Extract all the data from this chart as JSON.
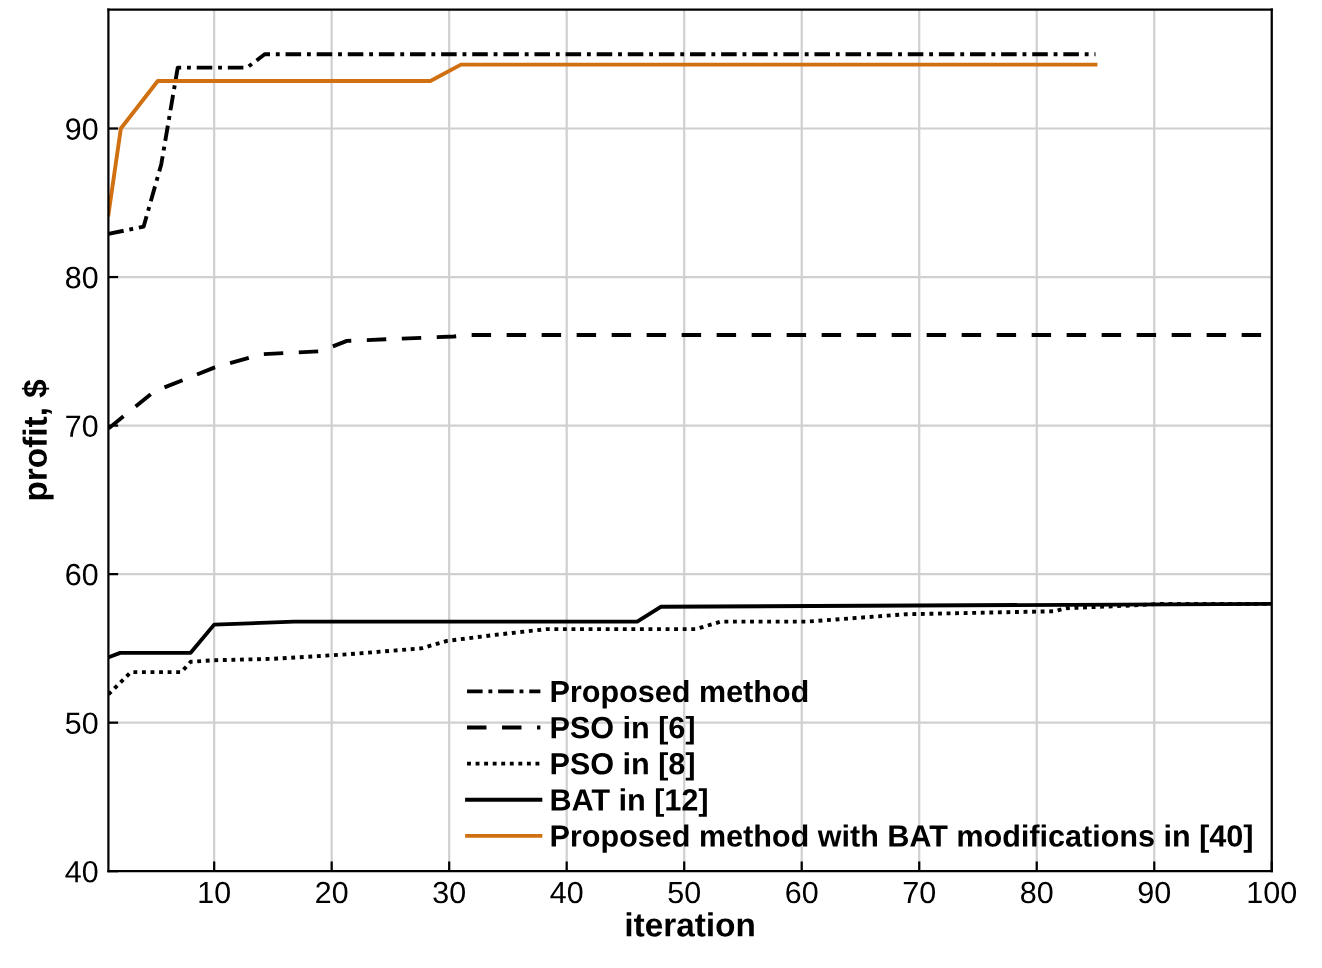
{
  "chart_data": {
    "type": "line",
    "xlabel": "iteration",
    "ylabel": "profit, $",
    "xlim": [
      1,
      100
    ],
    "ylim": [
      40,
      98
    ],
    "xticks": [
      10,
      20,
      30,
      40,
      50,
      60,
      70,
      80,
      90,
      100
    ],
    "yticks": [
      40,
      50,
      60,
      70,
      80,
      90
    ],
    "grid": true,
    "legend": "bottom right",
    "marker": "none",
    "series": [
      {
        "name": "Proposed method",
        "color": "#000000",
        "line_style": "dashdot",
        "x": [
          1,
          4,
          5.5,
          6.9,
          12.8,
          14.3,
          85
        ],
        "values": [
          82.9,
          83.4,
          87.6,
          94.1,
          94.1,
          95.0,
          95.0
        ]
      },
      {
        "name": "PSO in [6]",
        "color": "#000000",
        "line_style": "dashed",
        "x": [
          1,
          4.9,
          10,
          14,
          19,
          21.3,
          30.4,
          31.5,
          100
        ],
        "values": [
          69.8,
          72.3,
          73.9,
          74.8,
          75.0,
          75.7,
          76.0,
          76.1,
          76.1
        ]
      },
      {
        "name": "PSO in [8]",
        "color": "#000000",
        "line_style": "dotted",
        "x": [
          1,
          2.9,
          7.2,
          8,
          10,
          15.1,
          21.3,
          27.6,
          29.8,
          33.8,
          38.3,
          51,
          53.1,
          60.4,
          68.9,
          81.5,
          82.5,
          88.3,
          90.5,
          100
        ],
        "values": [
          51.9,
          53.4,
          53.4,
          54.1,
          54.2,
          54.3,
          54.6,
          55.0,
          55.5,
          55.9,
          56.3,
          56.3,
          56.8,
          56.8,
          57.3,
          57.5,
          57.7,
          57.9,
          58.0,
          58.0
        ]
      },
      {
        "name": "BAT in [12]",
        "color": "#000000",
        "line_style": "solid",
        "x": [
          1,
          2,
          8,
          10,
          16.8,
          46,
          48,
          100
        ],
        "values": [
          54.4,
          54.7,
          54.7,
          56.6,
          56.8,
          56.8,
          57.8,
          58.0
        ]
      },
      {
        "name": "Proposed method with BAT modifications in [40]",
        "color": "#d07010",
        "line_style": "solid",
        "x": [
          1,
          2.06,
          5.2,
          28.4,
          31,
          85
        ],
        "values": [
          84.2,
          90,
          93.2,
          93.2,
          94.3,
          94.3
        ]
      }
    ]
  }
}
